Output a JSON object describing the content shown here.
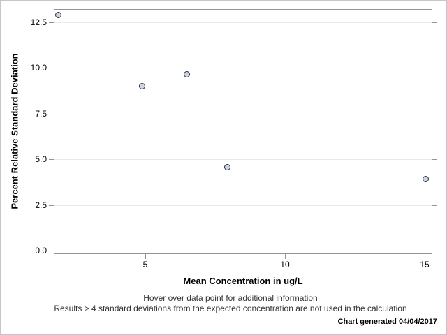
{
  "chart_data": {
    "type": "scatter",
    "title": "",
    "xlabel": "Mean Concentration in ug/L",
    "ylabel": "Percent Relative Standard Deviation",
    "x": [
      1.9,
      4.9,
      6.5,
      7.95,
      15.05
    ],
    "y": [
      12.9,
      9.0,
      9.65,
      4.55,
      3.9
    ],
    "xlim": [
      1.725,
      15.275
    ],
    "ylim": [
      -0.19,
      13.225
    ],
    "x_ticks": [
      {
        "value": 5,
        "label": "5"
      },
      {
        "value": 10,
        "label": "10"
      },
      {
        "value": 15,
        "label": "15"
      }
    ],
    "y_ticks": [
      {
        "value": 0,
        "label": "0.0"
      },
      {
        "value": 2.5,
        "label": "2.5"
      },
      {
        "value": 5,
        "label": "5.0"
      },
      {
        "value": 7.5,
        "label": "7.5"
      },
      {
        "value": 10,
        "label": "10.0"
      },
      {
        "value": 12.5,
        "label": "12.5"
      }
    ],
    "grid": "horizontal-only",
    "legend": "none",
    "colors": {
      "marker_fill": "#cdd3e0",
      "marker_stroke": "#242e40",
      "plot_border": "#949494",
      "gridline": "#e9e9e9"
    }
  },
  "footer": {
    "line1": "Hover over data point for additional information",
    "line2": "Results > 4 standard deviations from the expected concentration are not used in the calculation",
    "generated": "Chart generated 04/04/2017"
  }
}
